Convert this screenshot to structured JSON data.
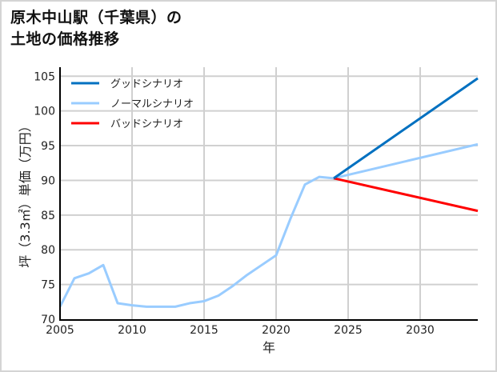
{
  "title": {
    "line1": "原木中山駅（千葉県）の",
    "line2": "土地の価格推移"
  },
  "chart_data": {
    "type": "line",
    "title": "原木中山駅（千葉県）の土地の価格推移",
    "xlabel": "年",
    "ylabel": "坪（3.3㎡）単価（万円）",
    "xlim": [
      2005,
      2034
    ],
    "ylim": [
      70,
      106.3
    ],
    "xticks": [
      2005,
      2010,
      2015,
      2020,
      2025,
      2030
    ],
    "yticks": [
      70,
      75,
      80,
      85,
      90,
      95,
      100,
      105
    ],
    "grid": true,
    "legend_position": "upper left",
    "series": [
      {
        "name": "グッドシナリオ",
        "color": "#0070c0",
        "x": [
          2024,
          2034
        ],
        "values": [
          90.3,
          104.7
        ]
      },
      {
        "name": "ノーマルシナリオ",
        "color": "#99ccff",
        "x": [
          2005,
          2006,
          2007,
          2008,
          2009,
          2010,
          2011,
          2012,
          2013,
          2014,
          2015,
          2016,
          2017,
          2018,
          2019,
          2020,
          2021,
          2022,
          2023,
          2024,
          2034
        ],
        "values": [
          71.8,
          75.9,
          76.6,
          77.8,
          72.3,
          72.0,
          71.8,
          71.8,
          71.8,
          72.3,
          72.6,
          73.4,
          74.8,
          76.4,
          77.8,
          79.2,
          84.5,
          89.4,
          90.5,
          90.3,
          95.2
        ]
      },
      {
        "name": "バッドシナリオ",
        "color": "#ff0000",
        "x": [
          2024,
          2034
        ],
        "values": [
          90.3,
          85.6
        ]
      }
    ]
  },
  "legend": [
    {
      "label": "グッドシナリオ",
      "color": "#0070c0"
    },
    {
      "label": "ノーマルシナリオ",
      "color": "#99ccff"
    },
    {
      "label": "バッドシナリオ",
      "color": "#ff0000"
    }
  ],
  "axes": {
    "xlabel": "年",
    "ylabel": "坪（3.3㎡）単価（万円）",
    "xtick_labels": [
      "2005",
      "2010",
      "2015",
      "2020",
      "2025",
      "2030"
    ],
    "ytick_labels": [
      "70",
      "75",
      "80",
      "85",
      "90",
      "95",
      "100",
      "105"
    ]
  }
}
